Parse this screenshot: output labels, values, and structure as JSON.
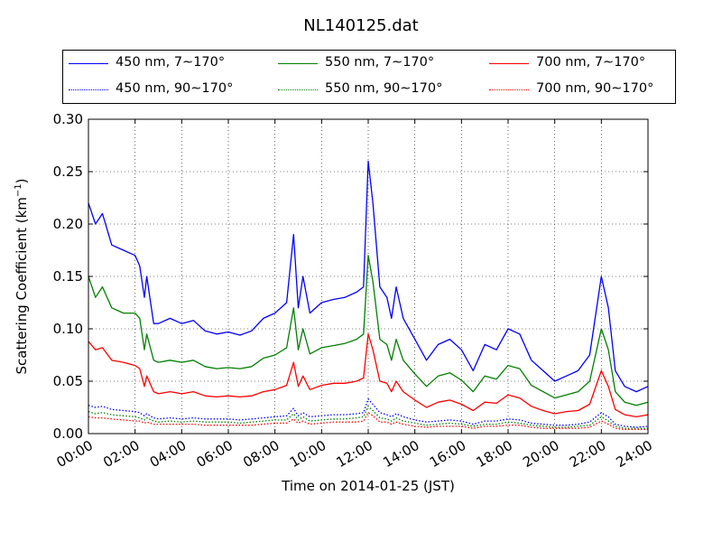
{
  "chart_data": {
    "type": "line",
    "title": "NL140125.dat",
    "xlabel": "Time on 2014-01-25 (JST)",
    "ylabel": "Scattering Coefficient (km",
    "ylabel_sup": "−1",
    "ylabel_close": ")",
    "xlim": [
      0,
      24
    ],
    "ylim": [
      0,
      0.3
    ],
    "grid": true,
    "legend_position": "top",
    "x_ticks": [
      0,
      2,
      4,
      6,
      8,
      10,
      12,
      14,
      16,
      18,
      20,
      22,
      24
    ],
    "x_tick_labels": [
      "00:00",
      "02:00",
      "04:00",
      "06:00",
      "08:00",
      "10:00",
      "12:00",
      "14:00",
      "16:00",
      "18:00",
      "20:00",
      "22:00",
      "24:00"
    ],
    "y_ticks": [
      0,
      0.05,
      0.1,
      0.15,
      0.2,
      0.25,
      0.3
    ],
    "y_tick_labels": [
      "0.00",
      "0.05",
      "0.10",
      "0.15",
      "0.20",
      "0.25",
      "0.30"
    ],
    "x": [
      0.0,
      0.3,
      0.6,
      1.0,
      1.5,
      2.0,
      2.2,
      2.4,
      2.5,
      2.8,
      3.0,
      3.5,
      4.0,
      4.5,
      5.0,
      5.5,
      6.0,
      6.5,
      7.0,
      7.5,
      8.0,
      8.5,
      8.8,
      9.0,
      9.2,
      9.5,
      10.0,
      10.5,
      11.0,
      11.5,
      11.8,
      12.0,
      12.2,
      12.5,
      12.8,
      13.0,
      13.2,
      13.5,
      14.0,
      14.5,
      15.0,
      15.5,
      16.0,
      16.5,
      17.0,
      17.5,
      18.0,
      18.5,
      19.0,
      19.5,
      20.0,
      20.5,
      21.0,
      21.5,
      22.0,
      22.3,
      22.6,
      23.0,
      23.5,
      24.0
    ],
    "series": [
      {
        "name": "450 nm, 7∼170°",
        "color": "#0000ff",
        "style": "solid",
        "values": [
          0.22,
          0.2,
          0.21,
          0.18,
          0.175,
          0.17,
          0.16,
          0.13,
          0.15,
          0.105,
          0.105,
          0.11,
          0.105,
          0.108,
          0.098,
          0.095,
          0.097,
          0.094,
          0.098,
          0.11,
          0.115,
          0.125,
          0.19,
          0.12,
          0.15,
          0.115,
          0.125,
          0.128,
          0.13,
          0.135,
          0.14,
          0.26,
          0.22,
          0.14,
          0.13,
          0.11,
          0.14,
          0.11,
          0.09,
          0.07,
          0.085,
          0.09,
          0.08,
          0.06,
          0.085,
          0.08,
          0.1,
          0.095,
          0.07,
          0.06,
          0.05,
          0.055,
          0.06,
          0.075,
          0.15,
          0.12,
          0.06,
          0.045,
          0.04,
          0.045
        ]
      },
      {
        "name": "550 nm, 7∼170°",
        "color": "#008000",
        "style": "solid",
        "values": [
          0.15,
          0.13,
          0.14,
          0.12,
          0.115,
          0.115,
          0.11,
          0.08,
          0.095,
          0.07,
          0.068,
          0.07,
          0.068,
          0.07,
          0.064,
          0.062,
          0.063,
          0.062,
          0.064,
          0.072,
          0.075,
          0.082,
          0.12,
          0.08,
          0.1,
          0.076,
          0.082,
          0.084,
          0.086,
          0.09,
          0.095,
          0.17,
          0.145,
          0.09,
          0.085,
          0.07,
          0.09,
          0.07,
          0.057,
          0.045,
          0.055,
          0.058,
          0.051,
          0.04,
          0.055,
          0.052,
          0.065,
          0.062,
          0.046,
          0.04,
          0.034,
          0.037,
          0.04,
          0.05,
          0.1,
          0.08,
          0.04,
          0.03,
          0.027,
          0.03
        ]
      },
      {
        "name": "700 nm, 7∼170°",
        "color": "#ff0000",
        "style": "solid",
        "values": [
          0.088,
          0.08,
          0.082,
          0.07,
          0.068,
          0.065,
          0.062,
          0.045,
          0.055,
          0.04,
          0.038,
          0.04,
          0.038,
          0.04,
          0.036,
          0.035,
          0.036,
          0.035,
          0.036,
          0.04,
          0.042,
          0.046,
          0.068,
          0.045,
          0.055,
          0.042,
          0.046,
          0.048,
          0.048,
          0.05,
          0.053,
          0.095,
          0.08,
          0.05,
          0.048,
          0.04,
          0.05,
          0.04,
          0.032,
          0.025,
          0.03,
          0.032,
          0.028,
          0.022,
          0.03,
          0.029,
          0.037,
          0.034,
          0.026,
          0.022,
          0.019,
          0.021,
          0.022,
          0.028,
          0.06,
          0.045,
          0.023,
          0.018,
          0.016,
          0.018
        ]
      },
      {
        "name": "450 nm, 90∼170°",
        "color": "#0000ff",
        "style": "dotted",
        "values": [
          0.027,
          0.025,
          0.026,
          0.023,
          0.022,
          0.021,
          0.02,
          0.017,
          0.019,
          0.015,
          0.014,
          0.015,
          0.014,
          0.015,
          0.014,
          0.014,
          0.014,
          0.013,
          0.014,
          0.015,
          0.016,
          0.017,
          0.024,
          0.017,
          0.02,
          0.016,
          0.017,
          0.018,
          0.018,
          0.019,
          0.02,
          0.033,
          0.028,
          0.02,
          0.018,
          0.016,
          0.019,
          0.016,
          0.013,
          0.011,
          0.012,
          0.013,
          0.012,
          0.009,
          0.012,
          0.012,
          0.014,
          0.013,
          0.01,
          0.009,
          0.008,
          0.008,
          0.009,
          0.011,
          0.02,
          0.016,
          0.009,
          0.007,
          0.006,
          0.007
        ]
      },
      {
        "name": "550 nm, 90∼170°",
        "color": "#008000",
        "style": "dotted",
        "values": [
          0.021,
          0.019,
          0.02,
          0.018,
          0.017,
          0.016,
          0.015,
          0.013,
          0.015,
          0.012,
          0.011,
          0.012,
          0.011,
          0.012,
          0.011,
          0.011,
          0.011,
          0.01,
          0.011,
          0.012,
          0.013,
          0.013,
          0.019,
          0.013,
          0.016,
          0.012,
          0.013,
          0.014,
          0.014,
          0.015,
          0.016,
          0.026,
          0.022,
          0.015,
          0.014,
          0.012,
          0.015,
          0.012,
          0.01,
          0.008,
          0.009,
          0.01,
          0.009,
          0.007,
          0.009,
          0.009,
          0.011,
          0.01,
          0.008,
          0.007,
          0.006,
          0.006,
          0.007,
          0.008,
          0.016,
          0.012,
          0.007,
          0.005,
          0.005,
          0.005
        ]
      },
      {
        "name": "700 nm, 90∼170°",
        "color": "#ff0000",
        "style": "dotted",
        "values": [
          0.016,
          0.015,
          0.015,
          0.014,
          0.013,
          0.012,
          0.012,
          0.01,
          0.011,
          0.009,
          0.009,
          0.009,
          0.009,
          0.009,
          0.008,
          0.008,
          0.008,
          0.008,
          0.008,
          0.009,
          0.01,
          0.01,
          0.014,
          0.01,
          0.012,
          0.009,
          0.01,
          0.011,
          0.011,
          0.011,
          0.012,
          0.02,
          0.017,
          0.011,
          0.011,
          0.009,
          0.011,
          0.009,
          0.007,
          0.006,
          0.007,
          0.007,
          0.007,
          0.005,
          0.007,
          0.007,
          0.008,
          0.008,
          0.006,
          0.005,
          0.005,
          0.005,
          0.005,
          0.006,
          0.012,
          0.009,
          0.005,
          0.004,
          0.004,
          0.004
        ]
      }
    ]
  }
}
